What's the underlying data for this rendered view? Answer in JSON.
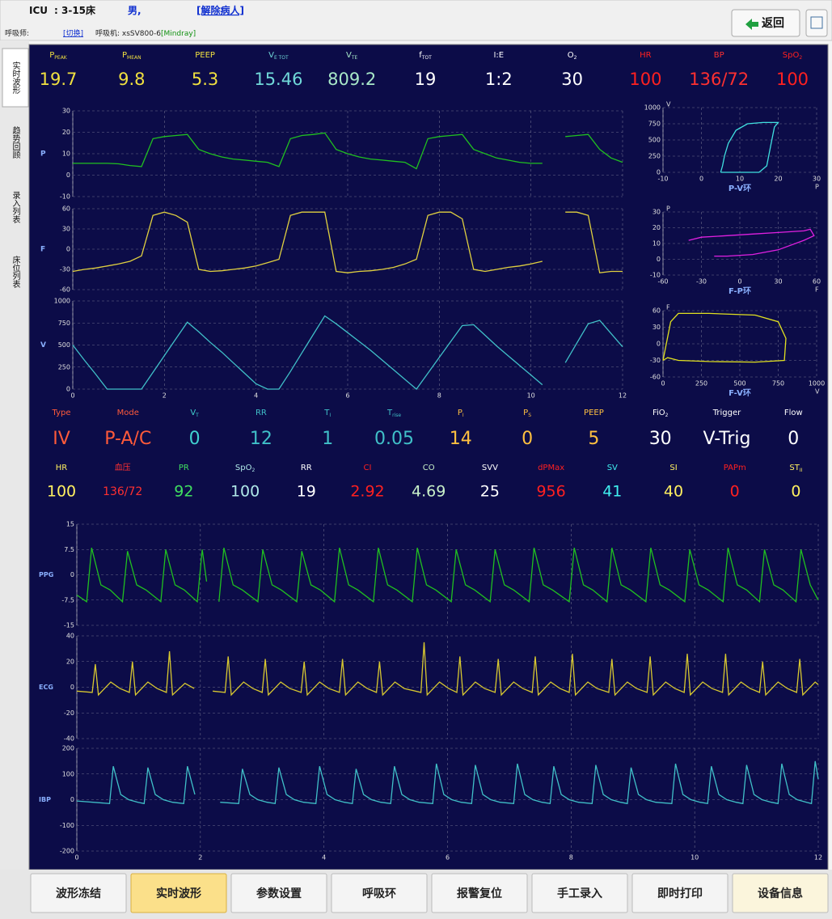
{
  "header": {
    "unit": "ICU",
    "bed": ": 3-15床",
    "gender": "男,",
    "discharge": "[解除病人]",
    "therapist_label": "呼吸师:",
    "switch": "[切换]",
    "ventilator_label": "呼吸机: xsSV800-6",
    "ventilator_brand": "[Mindray]",
    "back": "返回"
  },
  "side_tabs": [
    "实时波形",
    "趋势回顾",
    "录入列表",
    "床位列表"
  ],
  "vent_params": [
    {
      "label": "P",
      "sub": "PEAK",
      "value": 19.7,
      "color": "#f0e040"
    },
    {
      "label": "P",
      "sub": "MEAN",
      "value": 9.8,
      "color": "#f0e040"
    },
    {
      "label": "PEEP",
      "value": 5.3,
      "color": "#f0e040"
    },
    {
      "label": "V",
      "sub": "E TOT",
      "value": 15.46,
      "color": "#70d8d8"
    },
    {
      "label": "V",
      "sub": "TE",
      "value": 809.2,
      "color": "#a8e8c8"
    },
    {
      "label": "f",
      "sub": "TOT",
      "value": 19,
      "color": "#ffffff"
    },
    {
      "label": "I:E",
      "value": "1:2",
      "color": "#ffffff"
    },
    {
      "label": "O",
      "sub": "2",
      "value": 30,
      "color": "#ffffff"
    },
    {
      "label": "HR",
      "value": 100,
      "color": "#ff2020"
    },
    {
      "label": "BP",
      "value": "136/72",
      "color": "#ff3030"
    },
    {
      "label": "SpO",
      "sub": "2",
      "value": 100,
      "color": "#ff2020"
    }
  ],
  "settings": [
    {
      "label": "Type",
      "value": "IV",
      "color": "#ff5a3a"
    },
    {
      "label": "Mode",
      "value": "P-A/C",
      "color": "#ff5a3a"
    },
    {
      "label": "V",
      "sub": "T",
      "value": 0,
      "color": "#40d0d0"
    },
    {
      "label": "RR",
      "value": 12,
      "color": "#40c0c8"
    },
    {
      "label": "T",
      "sub": "I",
      "value": 1,
      "color": "#40c0c8"
    },
    {
      "label": "T",
      "sub": "rise",
      "value": 0.05,
      "color": "#40c0c8"
    },
    {
      "label": "P",
      "sub": "I",
      "value": 14,
      "color": "#ffc040"
    },
    {
      "label": "P",
      "sub": "S",
      "value": 0,
      "color": "#ffc040"
    },
    {
      "label": "PEEP",
      "value": 5,
      "color": "#ffc040"
    },
    {
      "label": "FiO",
      "sub": "2",
      "value": 30,
      "color": "#ffffff"
    },
    {
      "label": "Trigger",
      "value": "V-Trig",
      "color": "#ffffff"
    },
    {
      "label": "Flow",
      "value": 0,
      "color": "#ffffff"
    }
  ],
  "monitor_params": [
    {
      "label": "HR",
      "value": 100,
      "color": "#fff060"
    },
    {
      "label": "血压",
      "value": "136/72",
      "color": "#ff3030"
    },
    {
      "label": "PR",
      "value": 92,
      "color": "#40e060"
    },
    {
      "label": "SpO",
      "sub": "2",
      "value": 100,
      "color": "#b0e8e8"
    },
    {
      "label": "RR",
      "value": 19,
      "color": "#ffffff"
    },
    {
      "label": "CI",
      "value": 2.92,
      "color": "#ff2020"
    },
    {
      "label": "CO",
      "value": 4.69,
      "color": "#c8f0c8"
    },
    {
      "label": "SVV",
      "value": 25,
      "color": "#ffffff"
    },
    {
      "label": "dPMax",
      "value": 956,
      "color": "#ff2020"
    },
    {
      "label": "SV",
      "value": 41,
      "color": "#40f0f0"
    },
    {
      "label": "SI",
      "value": 40,
      "color": "#fff060"
    },
    {
      "label": "PAPm",
      "value": 0,
      "color": "#ff2020"
    },
    {
      "label": "ST",
      "sub": "II",
      "value": 0,
      "color": "#fff060"
    }
  ],
  "ventilator_waves": {
    "xlim": [
      0,
      12
    ],
    "xticks": [
      0,
      2,
      4,
      6,
      8,
      10,
      12
    ],
    "x": [
      0,
      0.25,
      0.5,
      0.75,
      1,
      1.25,
      1.5,
      1.75,
      2,
      2.25,
      2.5,
      2.75,
      3,
      3.25,
      3.5,
      3.75,
      4,
      4.25,
      4.5,
      4.75,
      5,
      5.25,
      5.5,
      5.75,
      6,
      6.25,
      6.5,
      6.75,
      7,
      7.25,
      7.5,
      7.75,
      8,
      8.25,
      8.5,
      8.75,
      9,
      9.25,
      9.5,
      9.75,
      10,
      10.25,
      10.5,
      10.75,
      11,
      11.25,
      11.5,
      11.75,
      12
    ],
    "panels": [
      {
        "label": "P",
        "color": "#20c020",
        "ylim": [
          -10,
          30
        ],
        "yticks": [
          -10,
          0,
          10,
          20,
          30
        ],
        "values": [
          5.5,
          5.5,
          5.5,
          5.5,
          5.3,
          4.5,
          4,
          17,
          18,
          18.5,
          19,
          12,
          10,
          8.5,
          7.5,
          7,
          6.5,
          6,
          4,
          17,
          18.5,
          19,
          19.7,
          12,
          10,
          8.5,
          7.5,
          7,
          6.5,
          6,
          3,
          17,
          18,
          18.5,
          19,
          12,
          10,
          8,
          7,
          6,
          5.5,
          5.5,
          null,
          18,
          18.5,
          19,
          12,
          8,
          6
        ]
      },
      {
        "label": "F",
        "color": "#e0d040",
        "ylim": [
          -60,
          60
        ],
        "yticks": [
          -60,
          -30,
          0,
          30,
          60
        ],
        "values": [
          -33,
          -30,
          -28,
          -25,
          -22,
          -18,
          -10,
          50,
          55,
          50,
          40,
          -30,
          -33,
          -32,
          -30,
          -28,
          -25,
          -20,
          -15,
          50,
          55,
          55,
          55,
          -33,
          -35,
          -33,
          -32,
          -30,
          -27,
          -22,
          -15,
          50,
          55,
          55,
          45,
          -30,
          -33,
          -30,
          -27,
          -25,
          -22,
          -18,
          null,
          55,
          55,
          50,
          -35,
          -33,
          -33
        ]
      },
      {
        "label": "V",
        "color": "#40c0c8",
        "ylim": [
          0,
          1000
        ],
        "yticks": [
          0,
          250,
          500,
          750,
          1000
        ],
        "values": [
          500,
          330,
          170,
          0,
          0,
          0,
          0,
          190,
          380,
          570,
          760,
          650,
          530,
          420,
          300,
          180,
          60,
          0,
          0,
          200,
          410,
          620,
          830,
          740,
          640,
          540,
          440,
          330,
          220,
          110,
          0,
          180,
          360,
          540,
          720,
          730,
          610,
          490,
          380,
          270,
          160,
          50,
          null,
          300,
          520,
          740,
          780,
          630,
          480
        ]
      }
    ]
  },
  "loops": [
    {
      "title": "P-V环",
      "xlabel": "P",
      "ylabel": "V",
      "color": "#40e0e0",
      "xlim": [
        -10,
        30
      ],
      "xticks": [
        -10,
        0,
        10,
        20,
        30
      ],
      "ylim": [
        0,
        1000
      ],
      "yticks": [
        0,
        250,
        500,
        750,
        1000
      ],
      "x": [
        5,
        8,
        15,
        17,
        18,
        19,
        20,
        16,
        12,
        9,
        7,
        6,
        5.5,
        5
      ],
      "values": [
        0,
        0,
        0,
        100,
        400,
        700,
        770,
        770,
        750,
        650,
        450,
        250,
        100,
        0
      ]
    },
    {
      "title": "F-P环",
      "xlabel": "F",
      "ylabel": "P",
      "color": "#e020e0",
      "xlim": [
        -60,
        60
      ],
      "xticks": [
        -60,
        -30,
        0,
        30,
        60
      ],
      "ylim": [
        -10,
        30
      ],
      "yticks": [
        -10,
        0,
        10,
        20,
        30
      ],
      "x": [
        -40,
        -30,
        -10,
        10,
        30,
        50,
        55,
        58,
        50,
        30,
        10,
        -10,
        -20
      ],
      "values": [
        12,
        14,
        15,
        16,
        17,
        18,
        19,
        15,
        12,
        6,
        3,
        2,
        2
      ]
    },
    {
      "title": "F-V环",
      "xlabel": "V",
      "ylabel": "F",
      "color": "#e0e020",
      "xlim": [
        0,
        1000
      ],
      "xticks": [
        0,
        250,
        500,
        750,
        1000
      ],
      "ylim": [
        -60,
        60
      ],
      "yticks": [
        -60,
        -30,
        0,
        30,
        60
      ],
      "x": [
        0,
        50,
        100,
        300,
        600,
        750,
        800,
        790,
        600,
        300,
        100,
        30,
        0
      ],
      "values": [
        -30,
        40,
        55,
        55,
        52,
        40,
        10,
        -30,
        -33,
        -32,
        -30,
        -25,
        -30
      ]
    }
  ],
  "monitor_waves": {
    "xlim": [
      0,
      12
    ],
    "xticks": [
      0,
      2,
      4,
      6,
      8,
      10,
      12
    ],
    "panels": [
      {
        "label": "PPG",
        "color": "#20c020",
        "ylim": [
          -15,
          15
        ],
        "yticks": [
          -15,
          -7.5,
          0,
          7.5,
          15
        ],
        "x": [
          0,
          0.16,
          0.24,
          0.39,
          0.54,
          0.74,
          0.82,
          0.97,
          1.12,
          1.36,
          1.44,
          1.59,
          1.74,
          1.95,
          2.03,
          2.1,
          2.2,
          2.3,
          2.38,
          2.53,
          2.68,
          2.93,
          3.01,
          3.16,
          3.31,
          3.56,
          3.64,
          3.79,
          3.94,
          4.17,
          4.25,
          4.4,
          4.55,
          4.8,
          4.88,
          5.03,
          5.18,
          5.43,
          5.51,
          5.66,
          5.81,
          6.06,
          6.14,
          6.29,
          6.44,
          6.69,
          6.77,
          6.92,
          7.07,
          7.32,
          7.4,
          7.55,
          7.7,
          7.97,
          8.05,
          8.2,
          8.35,
          8.58,
          8.66,
          8.81,
          8.96,
          9.21,
          9.29,
          9.44,
          9.59,
          9.84,
          9.92,
          10.07,
          10.22,
          10.46,
          10.54,
          10.69,
          10.84,
          11.05,
          11.13,
          11.28,
          11.43,
          11.64,
          11.72,
          11.87,
          12
        ],
        "values": [
          -6,
          -8,
          8,
          -3,
          -4.5,
          -8,
          7,
          -3,
          -4.5,
          -8,
          7.5,
          -3,
          -4.5,
          -8,
          7.5,
          -2,
          null,
          -8,
          8,
          -3,
          -4.5,
          -8,
          7.5,
          -3,
          -4.5,
          -8,
          7,
          -3,
          -4.5,
          -8,
          8,
          -3,
          -4.5,
          -8,
          8,
          -3,
          -4.5,
          -8,
          8,
          -3,
          -4.5,
          -8,
          7.5,
          -3,
          -4.5,
          -8,
          7.5,
          -3,
          -4.5,
          -8,
          8,
          -3,
          -4.5,
          -8,
          8,
          -3,
          -4.5,
          -8,
          8,
          -3,
          -4.5,
          -8,
          8,
          -3,
          -4.5,
          -8,
          7.5,
          -3,
          -4.5,
          -8,
          8,
          -3,
          -4.5,
          -8,
          7.5,
          -3,
          -4.5,
          -8,
          7.5,
          -3,
          -7.5
        ]
      },
      {
        "label": "ECG",
        "color": "#d8c830",
        "ylim": [
          -40,
          40
        ],
        "yticks": [
          -40,
          -20,
          0,
          20,
          40
        ],
        "x": [
          0,
          0.25,
          0.3,
          0.35,
          0.55,
          0.7,
          0.85,
          0.9,
          0.95,
          1.15,
          1.3,
          1.45,
          1.5,
          1.55,
          1.75,
          1.9,
          2.15,
          2.2,
          2.4,
          2.45,
          2.5,
          2.7,
          2.85,
          3,
          3.05,
          3.1,
          3.3,
          3.45,
          3.63,
          3.68,
          3.73,
          3.93,
          4.08,
          4.25,
          4.3,
          4.35,
          4.55,
          4.7,
          4.85,
          4.9,
          4.95,
          5.15,
          5.3,
          5.57,
          5.62,
          5.67,
          5.87,
          6.02,
          6.15,
          6.2,
          6.25,
          6.45,
          6.6,
          6.77,
          6.82,
          6.87,
          7.07,
          7.22,
          7.37,
          7.42,
          7.47,
          7.67,
          7.82,
          7.97,
          8.02,
          8.07,
          8.27,
          8.42,
          8.61,
          8.66,
          8.71,
          8.91,
          9.06,
          9.23,
          9.28,
          9.33,
          9.53,
          9.68,
          9.83,
          9.88,
          9.93,
          10.13,
          10.28,
          10.45,
          10.5,
          10.55,
          10.75,
          10.9,
          11.05,
          11.1,
          11.15,
          11.35,
          11.5,
          11.65,
          11.7,
          11.75,
          11.95,
          12
        ],
        "values": [
          -3,
          -4,
          18,
          -6,
          4,
          -1,
          -4,
          20,
          -6,
          4,
          -1,
          -4,
          28,
          -6,
          3,
          -1,
          null,
          -3,
          -4,
          24,
          -6,
          4,
          -1,
          -4,
          22,
          -6,
          4,
          -1,
          -4,
          20,
          -6,
          4,
          -1,
          -4,
          22,
          -6,
          4,
          -1,
          -4,
          20,
          -6,
          4,
          -1,
          -4,
          35,
          -6,
          4,
          -1,
          -4,
          24,
          -6,
          4,
          -1,
          -4,
          22,
          -6,
          4,
          -1,
          -4,
          24,
          -6,
          4,
          -1,
          -4,
          26,
          -6,
          4,
          -1,
          -4,
          22,
          -6,
          4,
          -1,
          -4,
          24,
          -6,
          4,
          -1,
          -4,
          26,
          -6,
          4,
          -1,
          -4,
          26,
          -6,
          4,
          -1,
          -4,
          20,
          -6,
          4,
          -1,
          -4,
          22,
          -6,
          4,
          2
        ]
      },
      {
        "label": "IBP",
        "color": "#40c0c8",
        "ylim": [
          -200,
          200
        ],
        "yticks": [
          -200,
          -100,
          0,
          100,
          200
        ],
        "x": [
          0,
          0.53,
          0.59,
          0.71,
          0.84,
          0.99,
          1.09,
          1.15,
          1.27,
          1.4,
          1.55,
          1.73,
          1.79,
          1.91,
          2.1,
          2.32,
          2.62,
          2.68,
          2.8,
          2.93,
          3.08,
          3.21,
          3.27,
          3.39,
          3.52,
          3.67,
          3.87,
          3.93,
          4.05,
          4.18,
          4.33,
          4.46,
          4.52,
          4.64,
          4.77,
          4.92,
          5.08,
          5.14,
          5.26,
          5.39,
          5.54,
          5.76,
          5.82,
          5.94,
          6.07,
          6.22,
          6.39,
          6.45,
          6.57,
          6.7,
          6.85,
          7.07,
          7.13,
          7.25,
          7.38,
          7.53,
          7.66,
          7.72,
          7.84,
          7.97,
          8.12,
          8.34,
          8.4,
          8.52,
          8.65,
          8.8,
          8.91,
          8.97,
          9.09,
          9.22,
          9.37,
          9.63,
          9.69,
          9.81,
          9.94,
          10.09,
          10.21,
          10.27,
          10.39,
          10.52,
          10.67,
          10.78,
          10.84,
          10.96,
          11.09,
          11.24,
          11.35,
          11.41,
          11.53,
          11.66,
          11.81,
          11.89,
          11.95,
          12
        ],
        "values": [
          -5,
          -15,
          130,
          20,
          0,
          -10,
          -15,
          125,
          20,
          0,
          -10,
          -15,
          130,
          20,
          null,
          -10,
          -15,
          120,
          20,
          0,
          -10,
          -15,
          125,
          20,
          0,
          -10,
          -15,
          130,
          20,
          0,
          -10,
          -15,
          120,
          20,
          0,
          -10,
          -15,
          130,
          20,
          0,
          -10,
          -15,
          140,
          20,
          0,
          -10,
          -15,
          135,
          20,
          0,
          -10,
          -15,
          140,
          20,
          0,
          -10,
          -15,
          130,
          20,
          0,
          -10,
          -15,
          135,
          20,
          0,
          -10,
          -15,
          125,
          20,
          0,
          -10,
          -15,
          140,
          20,
          0,
          -10,
          -15,
          130,
          20,
          0,
          -10,
          -15,
          135,
          20,
          0,
          -10,
          -15,
          140,
          20,
          0,
          -10,
          -15,
          150,
          80
        ]
      }
    ]
  },
  "buttons": [
    "波形冻结",
    "实时波形",
    "参数设置",
    "呼吸环",
    "报警复位",
    "手工录入",
    "即时打印",
    "设备信息"
  ]
}
